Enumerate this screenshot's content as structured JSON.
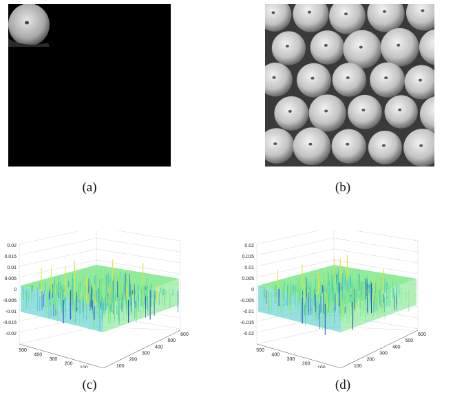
{
  "figure": {
    "captions": [
      "(a)",
      "(b)",
      "(c)",
      "(d)"
    ],
    "panel_a": {
      "description_icon": "apple-grayscale-icon"
    },
    "panel_b": {
      "description_icon": "apple-grid-icon"
    },
    "panel_c": {
      "z_ticks": [
        "0.02",
        "0.015",
        "0.01",
        "0.005",
        "0",
        "-0.005",
        "-0.01",
        "-0.015",
        "-0.02"
      ],
      "left_ticks": [
        "0",
        "100",
        "200",
        "300",
        "400",
        "500"
      ],
      "right_ticks": [
        "0",
        "100",
        "200",
        "300",
        "400",
        "500",
        "600"
      ]
    },
    "panel_d": {
      "z_ticks": [
        "0.02",
        "0.015",
        "0.01",
        "0.005",
        "0",
        "-0.005",
        "-0.01",
        "-0.015",
        "-0.02"
      ],
      "left_ticks": [
        "0",
        "100",
        "200",
        "300",
        "400",
        "500"
      ],
      "right_ticks": [
        "0",
        "100",
        "200",
        "300",
        "400",
        "500",
        "600"
      ]
    },
    "colors": {
      "surface_main": "#7de88a",
      "surface_alt": "#3fc6c8",
      "peak_high": "#e8e23a",
      "peak_low": "#2b53c9"
    }
  }
}
